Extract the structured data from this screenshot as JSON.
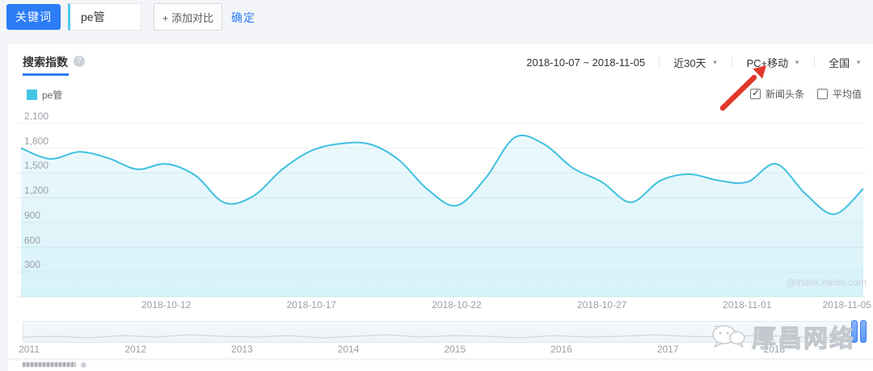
{
  "toolbar": {
    "keyword_label": "关键词",
    "keyword_value": "pe管",
    "add_compare_label": "+ 添加对比",
    "confirm_label": "确定"
  },
  "panel": {
    "tab": "搜索指数",
    "help_icon": "?",
    "date_range": "2018-10-07 ~ 2018-11-05",
    "range_dropdown": "近30天",
    "device_dropdown": "PC+移动",
    "region_dropdown": "全国",
    "legend": {
      "label": "pe管",
      "color": "#45c5e5"
    },
    "checkboxes": [
      {
        "label": "新闻头条",
        "checked": true
      },
      {
        "label": "平均值",
        "checked": false
      }
    ],
    "watermark": "@index.baidu.com"
  },
  "annotation": {
    "type": "arrow",
    "points_at": "PC+移动",
    "color": "#e1382a"
  },
  "chart_data": {
    "type": "area",
    "title": "搜索指数",
    "series_name": "pe管",
    "x": [
      "2018-10-07",
      "2018-10-08",
      "2018-10-09",
      "2018-10-10",
      "2018-10-11",
      "2018-10-12",
      "2018-10-13",
      "2018-10-14",
      "2018-10-15",
      "2018-10-16",
      "2018-10-17",
      "2018-10-18",
      "2018-10-19",
      "2018-10-20",
      "2018-10-21",
      "2018-10-22",
      "2018-10-23",
      "2018-10-24",
      "2018-10-25",
      "2018-10-26",
      "2018-10-27",
      "2018-10-28",
      "2018-10-29",
      "2018-10-30",
      "2018-10-31",
      "2018-11-01",
      "2018-11-02",
      "2018-11-03",
      "2018-11-04",
      "2018-11-05"
    ],
    "values": [
      1800,
      1670,
      1755,
      1680,
      1545,
      1610,
      1470,
      1140,
      1220,
      1545,
      1770,
      1855,
      1850,
      1660,
      1300,
      1105,
      1440,
      1930,
      1850,
      1560,
      1390,
      1145,
      1405,
      1485,
      1410,
      1390,
      1610,
      1250,
      1000,
      1310
    ],
    "x_tick_labels": [
      "2018-10-12",
      "2018-10-17",
      "2018-10-22",
      "2018-10-27",
      "2018-11-01",
      "2018-11-05"
    ],
    "x_tick_days": [
      5,
      10,
      15,
      20,
      25,
      29
    ],
    "y_ticks": [
      300,
      600,
      900,
      1200,
      1500,
      1800,
      2100
    ],
    "ylim": [
      0,
      2100
    ],
    "grid": true,
    "line_color": "#3fc0e0",
    "fill_color": "#45c5e5",
    "legend_position": "top-left"
  },
  "timeline": {
    "years": [
      "2011",
      "2012",
      "2013",
      "2014",
      "2015",
      "2016",
      "2017",
      "2018"
    ]
  },
  "brand": {
    "text": "厚昌网络"
  }
}
